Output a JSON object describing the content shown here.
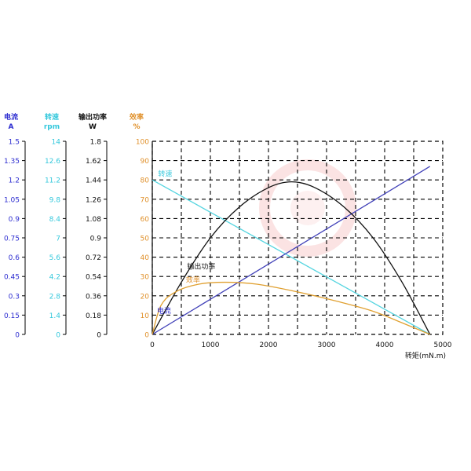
{
  "chart_data": {
    "type": "line",
    "x_axis": {
      "label": "转矩(mN.m)",
      "min": 0,
      "max": 5000,
      "ticks": [
        "0",
        "1000",
        "2000",
        "3000",
        "4000",
        "5000"
      ]
    },
    "percent_axis": {
      "title": "",
      "min": 0,
      "max": 100,
      "ticks": [
        "0",
        "10",
        "20",
        "30",
        "40",
        "50",
        "60",
        "70",
        "80",
        "90",
        "100"
      ]
    },
    "left_axes": [
      {
        "key": "current",
        "title": "电流",
        "unit": "A",
        "color": "#2c2cd0",
        "ticks": [
          "0",
          "0.15",
          "0.3",
          "0.45",
          "0.6",
          "0.75",
          "0.9",
          "1.05",
          "1.2",
          "1.35",
          "1.5"
        ]
      },
      {
        "key": "speed",
        "title": "转速",
        "unit": "rpm",
        "color": "#35c8dc",
        "ticks": [
          "0",
          "1.4",
          "2.8",
          "4.2",
          "5.6",
          "7",
          "8.4",
          "9.8",
          "11.2",
          "12.6",
          "14"
        ]
      },
      {
        "key": "power",
        "title": "输出功率",
        "unit": "W",
        "color": "#111111",
        "ticks": [
          "0",
          "0.18",
          "0.36",
          "0.54",
          "0.72",
          "0.9",
          "1.08",
          "1.26",
          "1.44",
          "1.62",
          "1.8"
        ]
      },
      {
        "key": "efficiency",
        "title": "效率",
        "unit": "%",
        "color": "#e0902a",
        "ticks": []
      }
    ],
    "series": [
      {
        "name": "转速",
        "key": "speed",
        "color": "#55d5e0",
        "points": [
          [
            0,
            80
          ],
          [
            4780,
            0
          ]
        ]
      },
      {
        "name": "电流",
        "key": "current",
        "color": "#4040b8",
        "points": [
          [
            0,
            0
          ],
          [
            4780,
            87
          ]
        ]
      },
      {
        "name": "输出功率",
        "key": "power",
        "color": "#111111",
        "points": [
          [
            0,
            0
          ],
          [
            500,
            27
          ],
          [
            1000,
            50
          ],
          [
            1500,
            66
          ],
          [
            2000,
            76
          ],
          [
            2400,
            79
          ],
          [
            2800,
            76
          ],
          [
            3300,
            66
          ],
          [
            3800,
            50
          ],
          [
            4300,
            27
          ],
          [
            4780,
            0
          ]
        ]
      },
      {
        "name": "效率",
        "key": "efficiency",
        "color": "#e0a030",
        "points": [
          [
            0,
            0
          ],
          [
            150,
            15
          ],
          [
            400,
            22
          ],
          [
            800,
            26
          ],
          [
            1250,
            27
          ],
          [
            1800,
            26
          ],
          [
            2500,
            22
          ],
          [
            3200,
            17
          ],
          [
            3800,
            12
          ],
          [
            4300,
            6
          ],
          [
            4780,
            0
          ]
        ]
      }
    ],
    "curve_labels": [
      {
        "text": "转速",
        "color": "#35c8dc",
        "at": [
          100,
          82
        ]
      },
      {
        "text": "输出功率",
        "color": "#111111",
        "at": [
          600,
          34
        ]
      },
      {
        "text": "效率",
        "color": "#e0902a",
        "at": [
          580,
          27
        ]
      },
      {
        "text": "电流",
        "color": "#2c2cd0",
        "at": [
          80,
          11
        ]
      }
    ],
    "grid": true,
    "watermark": "logo"
  }
}
